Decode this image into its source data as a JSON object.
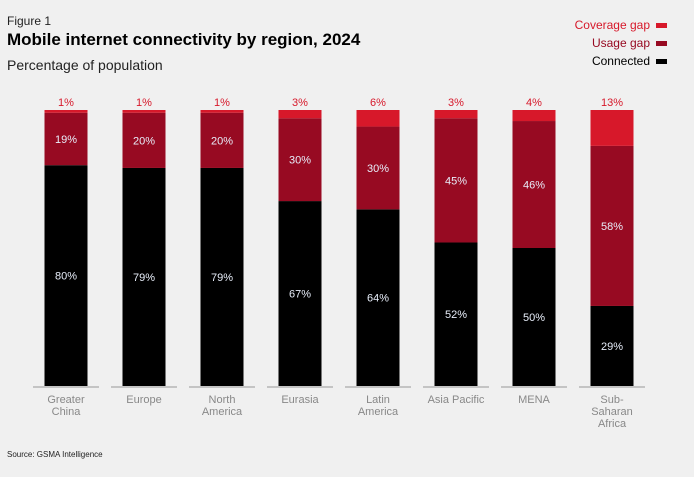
{
  "figure_label": "Figure 1",
  "source": "Source: GSMA Intelligence",
  "colors": {
    "coverage": "#d7182a",
    "usage": "#970a22",
    "connected": "#000000",
    "coverage_label": "#d7182a",
    "in_bar_label": "#e8eefa",
    "axis": "#999999"
  },
  "chart_data": {
    "type": "bar",
    "stacked": true,
    "title": "Mobile internet connectivity by region, 2024",
    "subtitle": "Percentage of population",
    "categories": [
      [
        "Greater",
        "China"
      ],
      [
        "Europe"
      ],
      [
        "North",
        "America"
      ],
      [
        "Eurasia"
      ],
      [
        "Latin",
        "America"
      ],
      [
        "Asia Pacific"
      ],
      [
        "MENA"
      ],
      [
        "Sub-",
        "Saharan",
        "Africa"
      ]
    ],
    "series": [
      {
        "name": "Connected",
        "key": "connected",
        "values": [
          80,
          79,
          79,
          67,
          64,
          52,
          50,
          29
        ]
      },
      {
        "name": "Usage gap",
        "key": "usage",
        "values": [
          19,
          20,
          20,
          30,
          30,
          45,
          46,
          58
        ]
      },
      {
        "name": "Coverage gap",
        "key": "coverage",
        "values": [
          1,
          1,
          1,
          3,
          6,
          3,
          4,
          13
        ]
      }
    ],
    "ylim": [
      0,
      100
    ],
    "value_format": "%",
    "grid": false,
    "legend_placement": "top-right"
  }
}
